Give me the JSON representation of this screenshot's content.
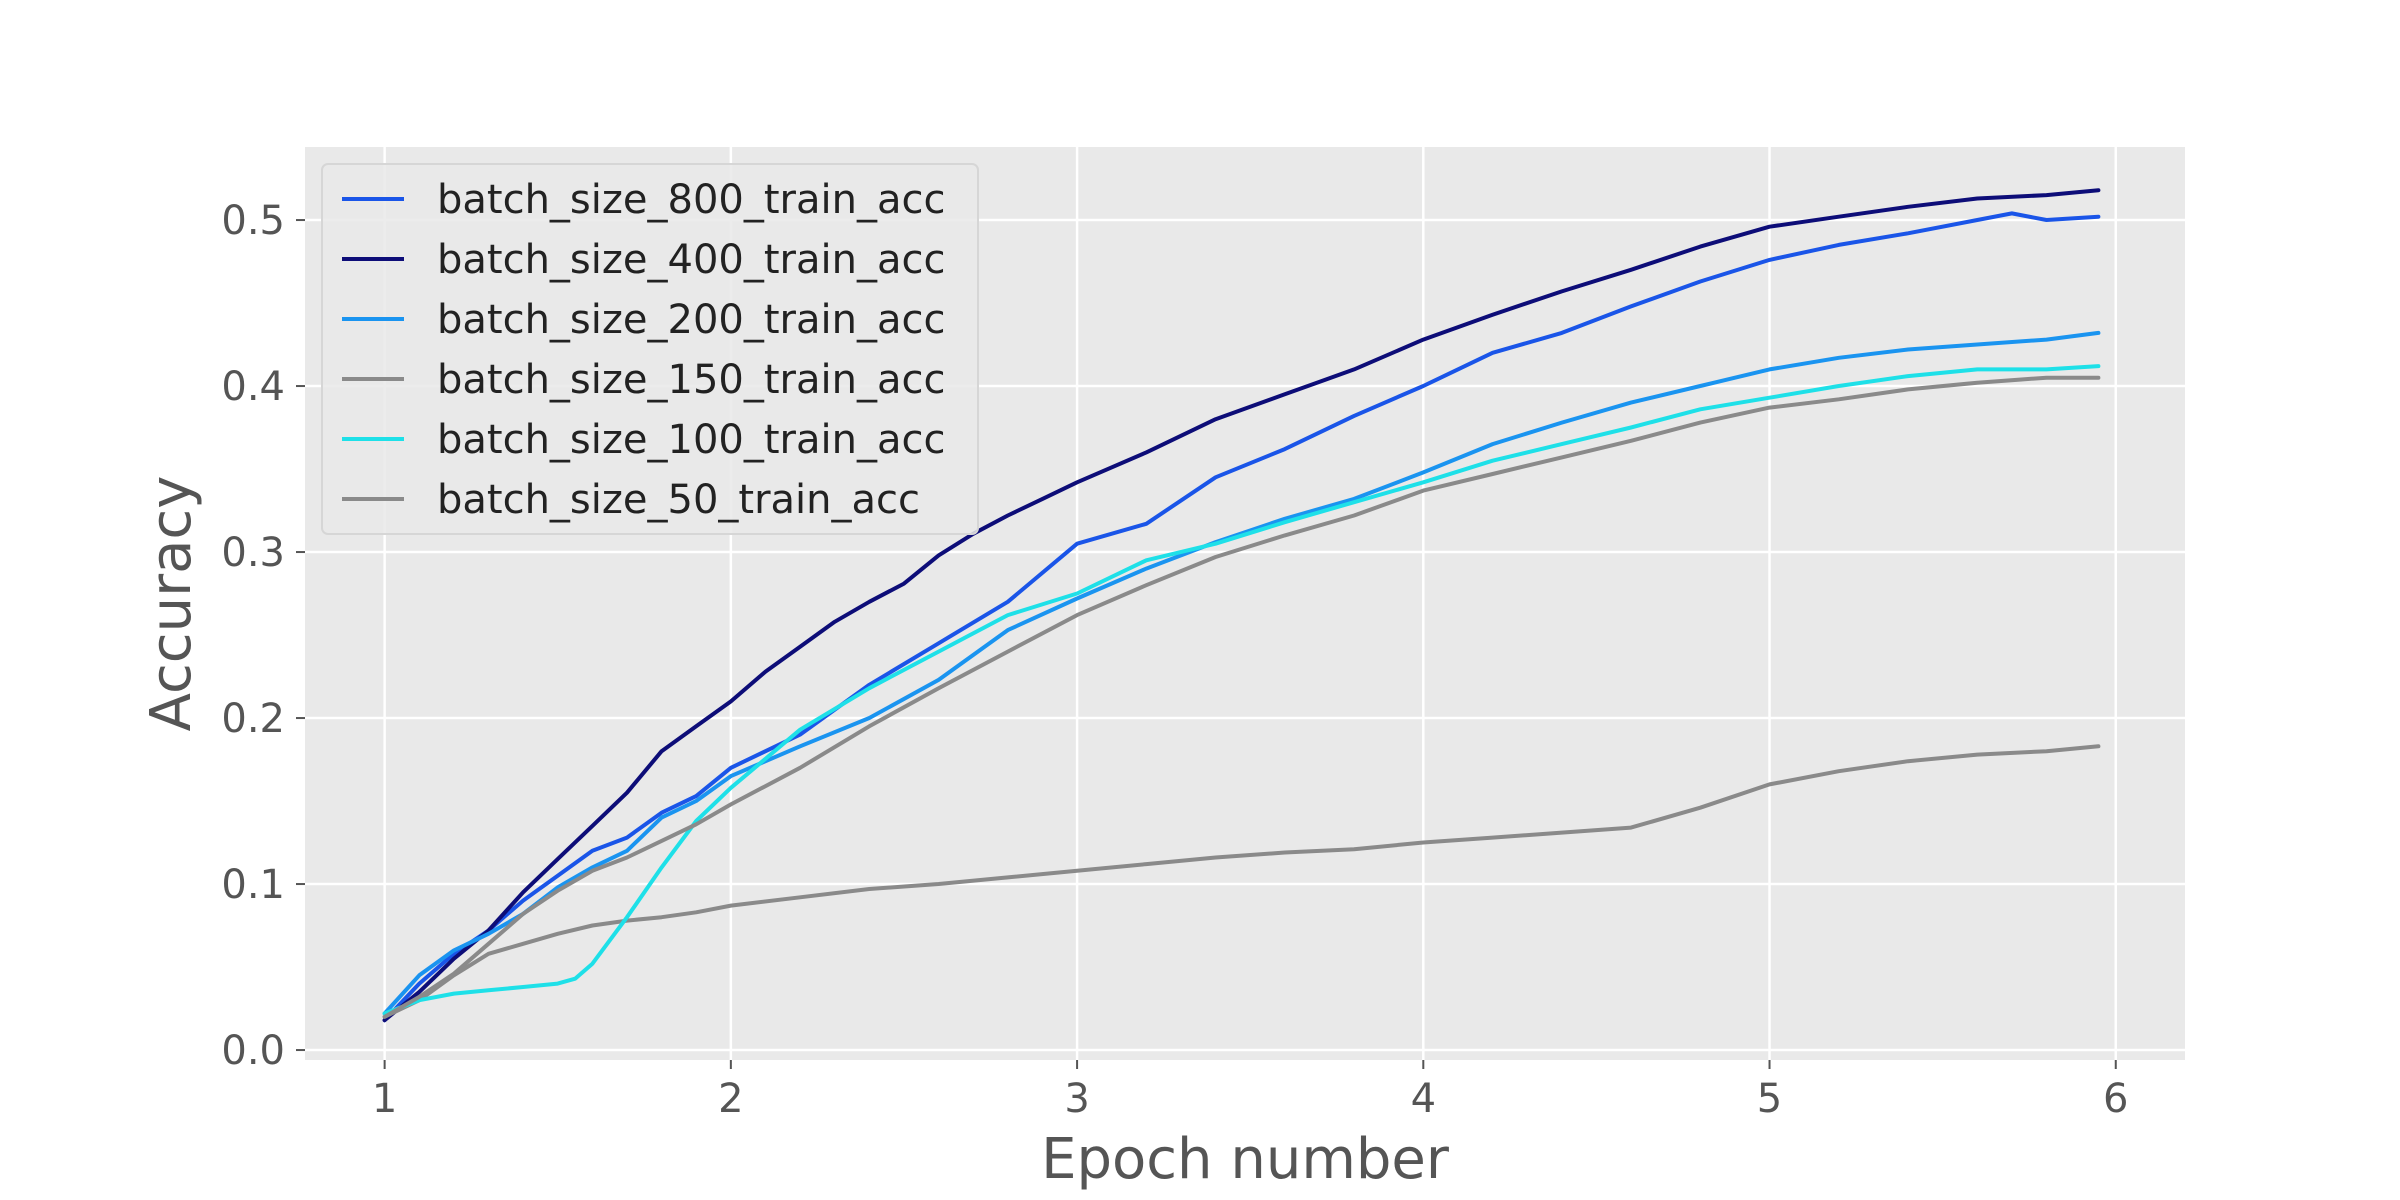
{
  "chart_data": {
    "type": "line",
    "title": "",
    "xlabel": "Epoch number",
    "ylabel": "Accuracy",
    "xlim": [
      0.77,
      6.2
    ],
    "ylim": [
      -0.006,
      0.544
    ],
    "xticks": [
      1,
      2,
      3,
      4,
      5,
      6
    ],
    "xtick_labels": [
      "1",
      "2",
      "3",
      "4",
      "5",
      "6"
    ],
    "yticks": [
      0.0,
      0.1,
      0.2,
      0.3,
      0.4,
      0.5
    ],
    "ytick_labels": [
      "0.0",
      "0.1",
      "0.2",
      "0.3",
      "0.4",
      "0.5"
    ],
    "grid": true,
    "background": "#e9e9e9",
    "grid_color": "#ffffff",
    "legend_position": "top-left",
    "series": [
      {
        "name": "batch_size_800_train_acc",
        "color": "#1a55e8",
        "x": [
          1.0,
          1.1,
          1.2,
          1.3,
          1.4,
          1.5,
          1.6,
          1.7,
          1.8,
          1.9,
          2.0,
          2.2,
          2.4,
          2.6,
          2.8,
          3.0,
          3.2,
          3.4,
          3.6,
          3.8,
          4.0,
          4.2,
          4.4,
          4.6,
          4.8,
          5.0,
          5.2,
          5.4,
          5.6,
          5.7,
          5.8,
          5.95
        ],
        "y": [
          0.018,
          0.04,
          0.058,
          0.072,
          0.09,
          0.105,
          0.12,
          0.128,
          0.143,
          0.153,
          0.17,
          0.19,
          0.22,
          0.245,
          0.27,
          0.305,
          0.317,
          0.345,
          0.362,
          0.382,
          0.4,
          0.42,
          0.432,
          0.448,
          0.463,
          0.476,
          0.485,
          0.492,
          0.5,
          0.504,
          0.5,
          0.502
        ]
      },
      {
        "name": "batch_size_400_train_acc",
        "color": "#0d0d78",
        "x": [
          1.0,
          1.1,
          1.2,
          1.3,
          1.4,
          1.5,
          1.6,
          1.7,
          1.8,
          1.9,
          2.0,
          2.1,
          2.2,
          2.3,
          2.4,
          2.5,
          2.6,
          2.7,
          2.8,
          2.9,
          3.0,
          3.2,
          3.4,
          3.6,
          3.8,
          4.0,
          4.2,
          4.4,
          4.6,
          4.8,
          5.0,
          5.2,
          5.4,
          5.6,
          5.8,
          5.95
        ],
        "y": [
          0.018,
          0.035,
          0.055,
          0.072,
          0.095,
          0.115,
          0.135,
          0.155,
          0.18,
          0.195,
          0.21,
          0.228,
          0.243,
          0.258,
          0.27,
          0.281,
          0.298,
          0.311,
          0.322,
          0.332,
          0.342,
          0.36,
          0.38,
          0.395,
          0.41,
          0.428,
          0.443,
          0.457,
          0.47,
          0.484,
          0.496,
          0.502,
          0.508,
          0.513,
          0.515,
          0.518
        ]
      },
      {
        "name": "batch_size_200_train_acc",
        "color": "#1a94f0",
        "x": [
          1.0,
          1.1,
          1.2,
          1.3,
          1.4,
          1.5,
          1.6,
          1.7,
          1.8,
          1.9,
          2.0,
          2.2,
          2.4,
          2.6,
          2.8,
          3.0,
          3.2,
          3.4,
          3.6,
          3.8,
          4.0,
          4.2,
          4.4,
          4.6,
          4.8,
          5.0,
          5.2,
          5.4,
          5.6,
          5.8,
          5.95
        ],
        "y": [
          0.022,
          0.045,
          0.06,
          0.07,
          0.082,
          0.098,
          0.11,
          0.12,
          0.14,
          0.15,
          0.165,
          0.183,
          0.2,
          0.223,
          0.253,
          0.272,
          0.29,
          0.306,
          0.32,
          0.332,
          0.348,
          0.365,
          0.378,
          0.39,
          0.4,
          0.41,
          0.417,
          0.422,
          0.425,
          0.428,
          0.432
        ]
      },
      {
        "name": "batch_size_150_train_acc",
        "color": "#8a8a8a",
        "x": [
          1.0,
          1.1,
          1.2,
          1.3,
          1.4,
          1.5,
          1.6,
          1.7,
          1.8,
          1.9,
          2.0,
          2.2,
          2.4,
          2.6,
          2.8,
          3.0,
          3.2,
          3.4,
          3.6,
          3.8,
          4.0,
          4.2,
          4.4,
          4.6,
          4.8,
          5.0,
          5.2,
          5.4,
          5.6,
          5.8,
          5.95
        ],
        "y": [
          0.02,
          0.03,
          0.045,
          0.058,
          0.064,
          0.07,
          0.075,
          0.078,
          0.08,
          0.083,
          0.087,
          0.092,
          0.097,
          0.1,
          0.104,
          0.108,
          0.112,
          0.116,
          0.119,
          0.121,
          0.125,
          0.128,
          0.131,
          0.134,
          0.146,
          0.16,
          0.168,
          0.174,
          0.178,
          0.18,
          0.183
        ]
      },
      {
        "name": "batch_size_100_train_acc",
        "color": "#1ee0e8",
        "x": [
          1.0,
          1.1,
          1.2,
          1.3,
          1.4,
          1.5,
          1.55,
          1.6,
          1.7,
          1.8,
          1.9,
          2.0,
          2.2,
          2.4,
          2.6,
          2.8,
          3.0,
          3.2,
          3.4,
          3.6,
          3.8,
          4.0,
          4.2,
          4.4,
          4.6,
          4.8,
          5.0,
          5.2,
          5.4,
          5.6,
          5.8,
          5.95
        ],
        "y": [
          0.022,
          0.03,
          0.034,
          0.036,
          0.038,
          0.04,
          0.043,
          0.052,
          0.08,
          0.11,
          0.138,
          0.158,
          0.193,
          0.218,
          0.24,
          0.262,
          0.275,
          0.295,
          0.305,
          0.318,
          0.33,
          0.342,
          0.355,
          0.365,
          0.375,
          0.386,
          0.393,
          0.4,
          0.406,
          0.41,
          0.41,
          0.412
        ]
      },
      {
        "name": "batch_size_50_train_acc",
        "color": "#8a8a8a",
        "x": [
          1.0,
          1.1,
          1.2,
          1.3,
          1.4,
          1.5,
          1.6,
          1.7,
          1.8,
          1.9,
          2.0,
          2.2,
          2.4,
          2.6,
          2.8,
          3.0,
          3.2,
          3.4,
          3.6,
          3.8,
          4.0,
          4.2,
          4.4,
          4.6,
          4.8,
          5.0,
          5.2,
          5.4,
          5.6,
          5.8,
          5.95
        ],
        "y": [
          0.02,
          0.032,
          0.046,
          0.064,
          0.082,
          0.096,
          0.108,
          0.116,
          0.126,
          0.136,
          0.148,
          0.17,
          0.195,
          0.218,
          0.24,
          0.262,
          0.28,
          0.297,
          0.31,
          0.322,
          0.337,
          0.347,
          0.357,
          0.367,
          0.378,
          0.387,
          0.392,
          0.398,
          0.402,
          0.405,
          0.405
        ]
      }
    ]
  }
}
